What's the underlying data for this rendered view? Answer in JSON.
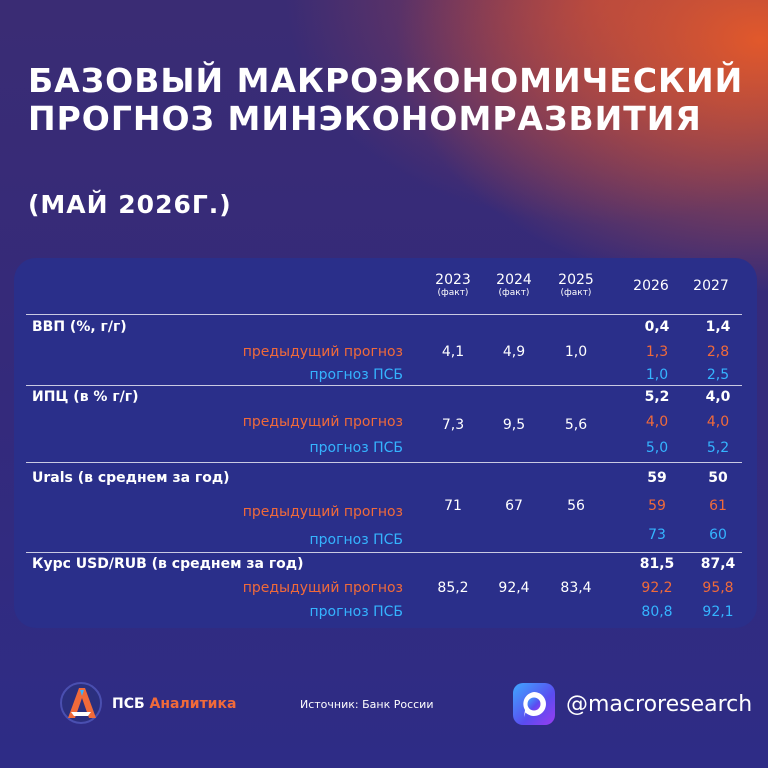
{
  "header": {
    "title": "БАЗОВЫЙ МАКРОЭКОНОМИЧЕСКИЙ ПРОГНОЗ МИНЭКОНОМРАЗВИТИЯ",
    "subtitle": "(МАЙ 2026Г.)"
  },
  "table": {
    "columns": [
      {
        "year": "2023",
        "note": "(факт)"
      },
      {
        "year": "2024",
        "note": "(факт)"
      },
      {
        "year": "2025",
        "note": "(факт)"
      },
      {
        "year": "2026",
        "note": ""
      },
      {
        "year": "2027",
        "note": ""
      }
    ],
    "sub_prev": "предыдущий прогноз",
    "sub_psb": "прогноз ПСБ",
    "sections": [
      {
        "label": "ВВП (%, г/г)",
        "main": [
          "0,4",
          "1,4"
        ],
        "facts": [
          "4,1",
          "4,9",
          "1,0"
        ],
        "prev": [
          "1,3",
          "2,8"
        ],
        "psb": [
          "1,0",
          "2,5"
        ]
      },
      {
        "label": "ИПЦ (в % г/г)",
        "main": [
          "5,2",
          "4,0"
        ],
        "facts": [
          "7,3",
          "9,5",
          "5,6"
        ],
        "prev": [
          "4,0",
          "4,0"
        ],
        "psb": [
          "5,0",
          "5,2"
        ]
      },
      {
        "label": "Urals (в среднем за год)",
        "main": [
          "59",
          "50"
        ],
        "facts": [
          "71",
          "67",
          "56"
        ],
        "prev": [
          "59",
          "61"
        ],
        "psb": [
          "73",
          "60"
        ]
      },
      {
        "label": "Курс USD/RUB (в среднем за год)",
        "main": [
          "81,5",
          "87,4"
        ],
        "facts": [
          "85,2",
          "92,4",
          "83,4"
        ],
        "prev": [
          "92,2",
          "95,8"
        ],
        "psb": [
          "80,8",
          "92,1"
        ]
      }
    ]
  },
  "footer": {
    "brand_part1": "ПСБ ",
    "brand_part2": "Аналитика",
    "source": "Источник: Банк России",
    "handle": "@macroresearch",
    "brand_icon": "psb-logo-icon",
    "social_icon": "max-messenger-icon"
  },
  "colors": {
    "previous_forecast": "#f06a3a",
    "psb_forecast": "#35b4ff",
    "card": "#2a2f8a"
  }
}
